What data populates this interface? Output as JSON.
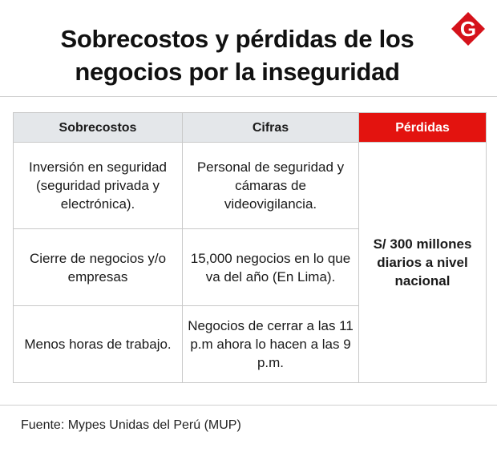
{
  "title": "Sobrecostos y pérdidas de los negocios por la inseguridad",
  "logo": {
    "letter": "G",
    "color": "#d5121b"
  },
  "table": {
    "headers": [
      "Sobrecostos",
      "Cifras",
      "Pérdidas"
    ],
    "rows": [
      {
        "sobrecosto": "Inversión en seguridad (seguridad privada y electrónica).",
        "cifra": "Personal de seguridad y cámaras  de videovigilancia."
      },
      {
        "sobrecosto": "Cierre de negocios y/o empresas",
        "cifra": "15,000 negocios en lo que va del año (En Lima)."
      },
      {
        "sobrecosto": "Menos horas de trabajo.",
        "cifra": "Negocios de cerrar a las 11 p.m ahora lo hacen a las 9 p.m."
      }
    ],
    "perdidas": "S/ 300 millones diarios a nivel nacional"
  },
  "source": "Fuente: Mypes Unidas del Perú (MUP)",
  "colors": {
    "header_bg": "#e4e7ea",
    "accent_red": "#e3130f"
  }
}
